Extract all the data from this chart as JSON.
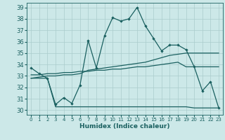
{
  "xlabel": "Humidex (Indice chaleur)",
  "background_color": "#cce8e8",
  "grid_color": "#aacccc",
  "line_color": "#1a6060",
  "xlim": [
    -0.5,
    23.5
  ],
  "ylim": [
    29.6,
    39.4
  ],
  "xticks": [
    0,
    1,
    2,
    3,
    4,
    5,
    6,
    7,
    8,
    9,
    10,
    11,
    12,
    13,
    14,
    15,
    16,
    17,
    18,
    19,
    20,
    21,
    22,
    23
  ],
  "yticks": [
    30,
    31,
    32,
    33,
    34,
    35,
    36,
    37,
    38,
    39
  ],
  "series1_x": [
    0,
    1,
    2,
    3,
    4,
    5,
    6,
    7,
    8,
    9,
    10,
    11,
    12,
    13,
    14,
    15,
    16,
    17,
    18,
    19,
    20,
    21,
    22,
    23
  ],
  "series1_y": [
    33.7,
    33.2,
    32.8,
    30.5,
    31.1,
    30.6,
    32.2,
    36.1,
    33.7,
    36.5,
    38.1,
    37.8,
    38.0,
    39.0,
    37.4,
    36.3,
    35.2,
    35.7,
    35.7,
    35.3,
    33.8,
    31.7,
    32.5,
    30.2
  ],
  "series2_x": [
    0,
    1,
    2,
    3,
    4,
    5,
    6,
    7,
    8,
    9,
    10,
    11,
    12,
    13,
    14,
    15,
    16,
    17,
    18,
    19,
    20,
    21,
    22,
    23
  ],
  "series2_y": [
    32.8,
    32.8,
    32.8,
    30.3,
    30.3,
    30.3,
    30.3,
    30.3,
    30.3,
    30.3,
    30.3,
    30.3,
    30.3,
    30.3,
    30.3,
    30.3,
    30.3,
    30.3,
    30.3,
    30.3,
    30.2,
    30.2,
    30.2,
    30.2
  ],
  "series3_x": [
    0,
    1,
    2,
    3,
    4,
    5,
    6,
    7,
    8,
    9,
    10,
    11,
    12,
    13,
    14,
    15,
    16,
    17,
    18,
    19,
    20,
    21,
    22,
    23
  ],
  "series3_y": [
    32.8,
    32.9,
    33.0,
    33.0,
    33.1,
    33.1,
    33.2,
    33.5,
    33.6,
    33.7,
    33.8,
    33.9,
    34.0,
    34.1,
    34.2,
    34.4,
    34.6,
    34.8,
    34.9,
    35.0,
    35.0,
    35.0,
    35.0,
    35.0
  ],
  "series4_x": [
    0,
    1,
    2,
    3,
    4,
    5,
    6,
    7,
    8,
    9,
    10,
    11,
    12,
    13,
    14,
    15,
    16,
    17,
    18,
    19,
    20,
    21,
    22,
    23
  ],
  "series4_y": [
    33.1,
    33.1,
    33.2,
    33.2,
    33.3,
    33.3,
    33.4,
    33.4,
    33.5,
    33.5,
    33.6,
    33.6,
    33.7,
    33.8,
    33.8,
    33.9,
    34.0,
    34.1,
    34.2,
    33.8,
    33.8,
    33.8,
    33.8,
    33.8
  ]
}
